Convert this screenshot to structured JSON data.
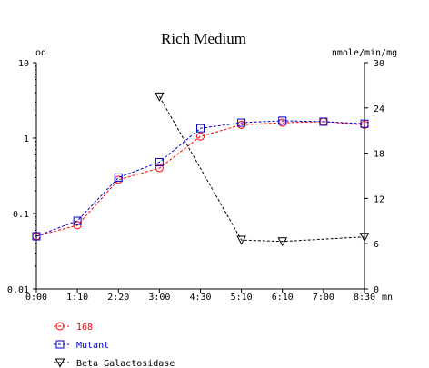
{
  "chart_data": {
    "type": "line",
    "title": "Rich Medium",
    "x_unit": "mn",
    "categories": [
      "0:00",
      "1:10",
      "2:20",
      "3:00",
      "4:30",
      "5:10",
      "6:10",
      "7:00",
      "8:30"
    ],
    "x": [
      0,
      1,
      2,
      3,
      4,
      5,
      6,
      7,
      8
    ],
    "y_left": {
      "label": "od",
      "scale": "log",
      "ylim": [
        0.01,
        10
      ],
      "ticks": [
        "0.01",
        "0.1",
        "1",
        "10"
      ]
    },
    "y_right": {
      "label": "nmole/min/mg",
      "scale": "linear",
      "ylim": [
        0,
        30
      ],
      "ticks": [
        "0",
        "6",
        "12",
        "18",
        "24",
        "30"
      ]
    },
    "series": [
      {
        "name": "168",
        "axis": "left",
        "color": "#ff0000",
        "marker": "circle",
        "x": [
          0,
          1,
          2,
          3,
          4,
          5,
          6,
          7,
          8
        ],
        "values": [
          0.05,
          0.07,
          0.28,
          0.4,
          1.05,
          1.5,
          1.6,
          1.65,
          1.5
        ]
      },
      {
        "name": "Mutant",
        "axis": "left",
        "color": "#0000cc",
        "marker": "square",
        "x": [
          0,
          1,
          2,
          3,
          4,
          5,
          6,
          7,
          8
        ],
        "values": [
          0.05,
          0.08,
          0.3,
          0.48,
          1.35,
          1.6,
          1.7,
          1.65,
          1.55
        ]
      },
      {
        "name": "Beta Galactosidase",
        "axis": "right",
        "color": "#000000",
        "marker": "triangle-down",
        "x": [
          3,
          5,
          6,
          8
        ],
        "values": [
          25.5,
          6.5,
          6.3,
          6.9
        ]
      }
    ]
  }
}
